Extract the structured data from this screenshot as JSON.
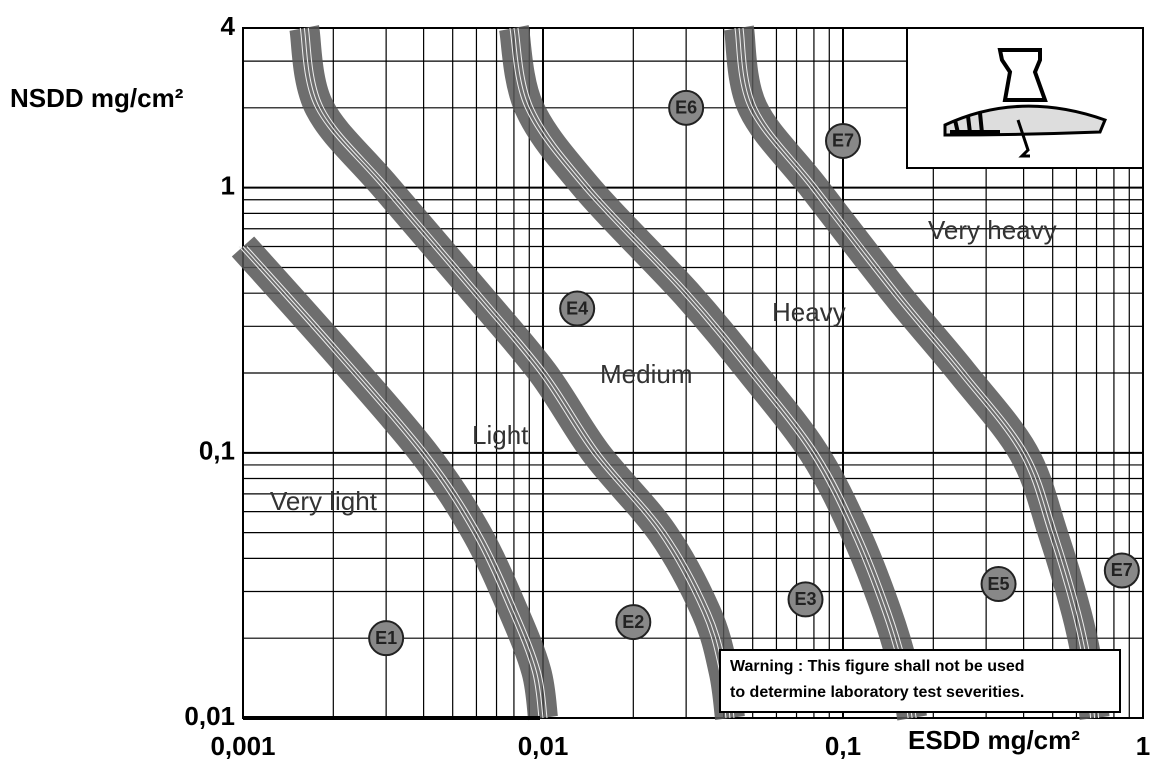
{
  "chart_data": {
    "type": "scatter",
    "xlabel": "ESDD mg/cm²",
    "ylabel": "NSDD mg/cm²",
    "log_x": true,
    "log_y": true,
    "grid": true,
    "xlim": [
      0.001,
      1
    ],
    "ylim": [
      0.01,
      4
    ],
    "xticks": [
      {
        "value": 0.001,
        "label": "0,001"
      },
      {
        "value": 0.01,
        "label": "0,01"
      },
      {
        "value": 0.1,
        "label": "0,1"
      },
      1
    ],
    "yticks": [
      {
        "value": 0.01,
        "label": "0,01"
      },
      {
        "value": 0.1,
        "label": "0,1"
      },
      1,
      4
    ],
    "xminor": [
      0.002,
      0.003,
      0.004,
      0.005,
      0.006,
      0.007,
      0.008,
      0.009,
      0.02,
      0.03,
      0.04,
      0.05,
      0.06,
      0.07,
      0.08,
      0.09,
      0.2,
      0.3,
      0.4,
      0.5,
      0.6,
      0.7,
      0.8,
      0.9
    ],
    "yminor": [
      0.02,
      0.03,
      0.04,
      0.05,
      0.06,
      0.07,
      0.08,
      0.09,
      0.2,
      0.3,
      0.4,
      0.5,
      0.6,
      0.7,
      0.8,
      0.9,
      2,
      3
    ],
    "boundaries": [
      {
        "color": "#555555",
        "x": [
          0.001,
          0.002,
          0.004,
          0.006,
          0.008,
          0.0095,
          0.01
        ],
        "y": [
          0.6,
          0.25,
          0.1,
          0.05,
          0.025,
          0.015,
          0.01
        ]
      },
      {
        "color": "#555555",
        "x": [
          0.0016,
          0.0018,
          0.003,
          0.006,
          0.01,
          0.015,
          0.025,
          0.035,
          0.04,
          0.042
        ],
        "y": [
          4,
          2,
          1,
          0.4,
          0.2,
          0.1,
          0.05,
          0.025,
          0.015,
          0.01
        ]
      },
      {
        "color": "#555555",
        "x": [
          0.008,
          0.009,
          0.014,
          0.03,
          0.05,
          0.08,
          0.11,
          0.14,
          0.16,
          0.17
        ],
        "y": [
          4,
          2,
          1,
          0.4,
          0.2,
          0.1,
          0.05,
          0.025,
          0.015,
          0.01
        ]
      },
      {
        "color": "#555555",
        "x": [
          0.045,
          0.05,
          0.08,
          0.15,
          0.25,
          0.4,
          0.5,
          0.6,
          0.66,
          0.69
        ],
        "y": [
          4,
          2,
          1,
          0.4,
          0.2,
          0.1,
          0.05,
          0.025,
          0.015,
          0.01
        ]
      }
    ],
    "zones": [
      "Very light",
      "Light",
      "Medium",
      "Heavy",
      "Very heavy"
    ],
    "points": {
      "color": "#888888",
      "labels": [
        "E1",
        "E2",
        "E3",
        "E4",
        "E5",
        "E6",
        "E7",
        "E7"
      ],
      "x": [
        0.003,
        0.02,
        0.075,
        0.013,
        0.33,
        0.03,
        0.1,
        0.85
      ],
      "y": [
        0.02,
        0.023,
        0.028,
        0.35,
        0.032,
        2,
        1.5,
        0.036
      ]
    },
    "warning": [
      "Warning : This figure shall not be used",
      "to determine laboratory test severities."
    ]
  }
}
